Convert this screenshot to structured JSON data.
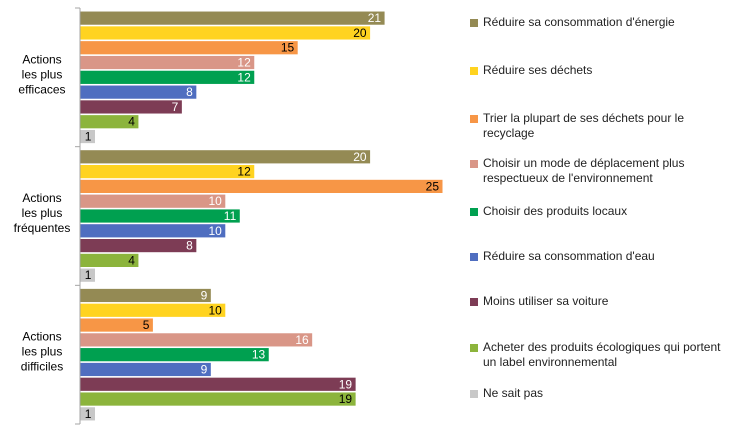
{
  "chart_data": {
    "type": "bar",
    "orientation": "horizontal",
    "title": "",
    "xlabel": "",
    "ylabel": "",
    "xlim": [
      0,
      25
    ],
    "grid": false,
    "legend_position": "right",
    "groups": [
      {
        "label_lines": [
          "Actions",
          "les plus",
          "efficaces"
        ],
        "values": [
          21,
          20,
          15,
          12,
          12,
          8,
          7,
          4,
          1
        ]
      },
      {
        "label_lines": [
          "Actions",
          "les plus",
          "fréquentes"
        ],
        "values": [
          20,
          12,
          25,
          10,
          11,
          10,
          8,
          4,
          1
        ]
      },
      {
        "label_lines": [
          "Actions",
          "les plus",
          "difficiles"
        ],
        "values": [
          9,
          10,
          5,
          16,
          13,
          9,
          19,
          19,
          1
        ]
      }
    ],
    "series": [
      {
        "name": "Réduire sa consommation d'énergie",
        "color": "#948a54",
        "label_color": "#ffffff"
      },
      {
        "name": "Réduire ses déchets",
        "color": "#ffd320",
        "label_color": "#000000"
      },
      {
        "name": "Trier la plupart de ses déchets pour le recyclage",
        "color": "#f79646",
        "label_color": "#000000"
      },
      {
        "name": "Choisir un mode de déplacement plus respectueux de l'environnement",
        "color": "#d99687",
        "label_color": "#ffffff"
      },
      {
        "name": "Choisir des produits locaux",
        "color": "#00a050",
        "label_color": "#ffffff"
      },
      {
        "name": "Réduire sa consommation d'eau",
        "color": "#4f6ec0",
        "label_color": "#ffffff"
      },
      {
        "name": "Moins utiliser sa voiture",
        "color": "#7d3c55",
        "label_color": "#ffffff"
      },
      {
        "name": "Acheter des produits écologiques qui portent un label environnemental",
        "color": "#8cb43c",
        "label_color": "#000000"
      },
      {
        "name": "Ne sait pas",
        "color": "#c8c8c8",
        "label_color": "#000000"
      }
    ]
  }
}
